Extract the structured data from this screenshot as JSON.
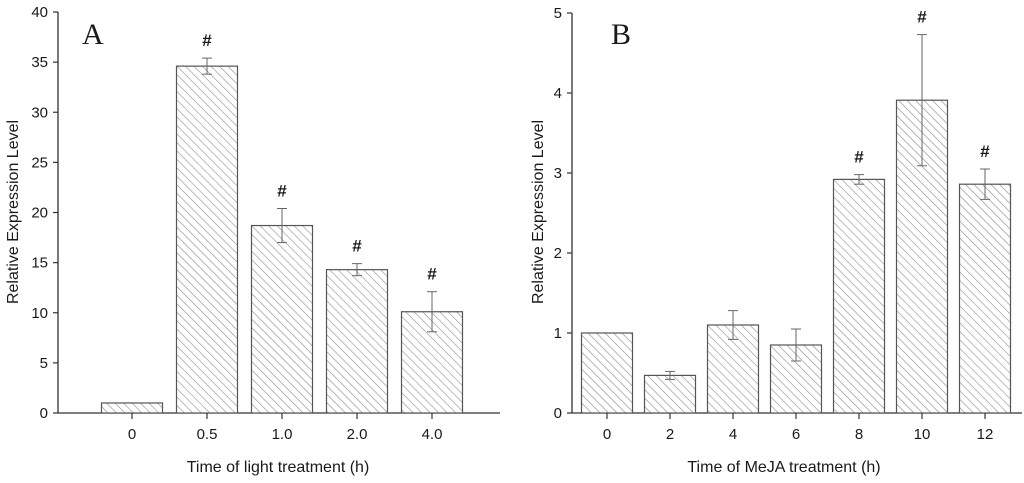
{
  "chart_data": [
    {
      "panel": "A",
      "type": "bar",
      "categories": [
        "0",
        "0.5",
        "1.0",
        "2.0",
        "4.0"
      ],
      "values": [
        1.0,
        34.6,
        18.7,
        14.3,
        10.1
      ],
      "errors": [
        0,
        0.8,
        1.7,
        0.6,
        2.0
      ],
      "annotations": [
        "",
        "#",
        "#",
        "#",
        "#"
      ],
      "xlabel": "Time of light treatment (h)",
      "ylabel": "Relative Expression Level",
      "ylim": [
        0,
        40
      ],
      "yticks": [
        "0",
        "5",
        "10",
        "15",
        "20",
        "25",
        "30",
        "35",
        "40"
      ],
      "ytick_values": [
        0,
        5,
        10,
        15,
        20,
        25,
        30,
        35,
        40
      ],
      "pattern": "diagonal-hatch"
    },
    {
      "panel": "B",
      "type": "bar",
      "categories": [
        "0",
        "2",
        "4",
        "6",
        "8",
        "10",
        "12"
      ],
      "values": [
        1.0,
        0.47,
        1.1,
        0.85,
        2.92,
        3.91,
        2.86
      ],
      "errors": [
        0,
        0.05,
        0.18,
        0.2,
        0.06,
        0.82,
        0.19
      ],
      "annotations": [
        "",
        "",
        "",
        "",
        "#",
        "#",
        "#"
      ],
      "xlabel": "Time of MeJA treatment (h)",
      "ylabel": "Relative Expression Level",
      "ylim": [
        0,
        5
      ],
      "yticks": [
        "0",
        "1",
        "2",
        "3",
        "4",
        "5"
      ],
      "ytick_values": [
        0,
        1,
        2,
        3,
        4,
        5
      ],
      "pattern": "diagonal-hatch"
    }
  ],
  "colors": {
    "axis": "#333333",
    "bar_fill": "#ffffff",
    "hatch": "#8c8c8c",
    "bar_edge": "#555555",
    "error": "#666666"
  }
}
